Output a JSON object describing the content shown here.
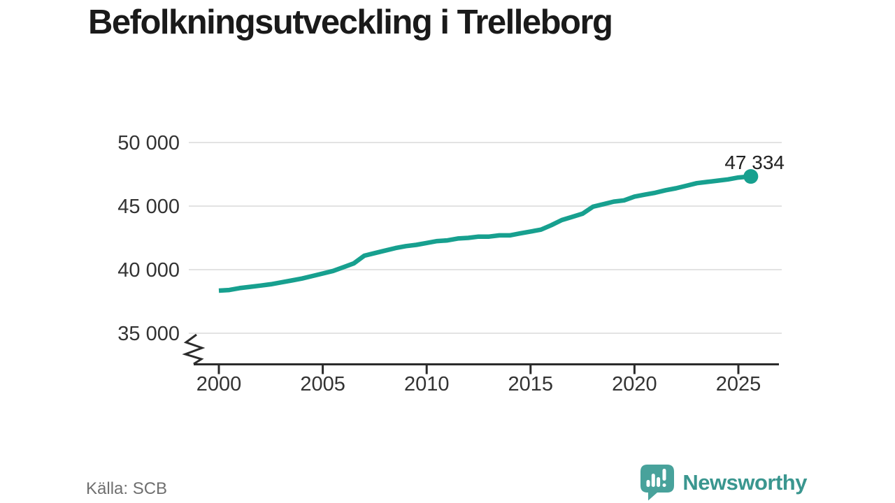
{
  "title": "Befolkningsutveckling i Trelleborg",
  "footer": {
    "source": "Källa: SCB",
    "brand": "Newsworthy"
  },
  "colors": {
    "line": "#17a08f",
    "endpoint_dot": "#17a08f",
    "grid": "#e3e3e3",
    "axis": "#2b2b2b",
    "tick_label": "#333333",
    "title": "#1a1a1a",
    "endpoint_label": "#222222",
    "source_text": "#6f6f6f",
    "brand_text": "#3a968f",
    "brand_bubble": "#48a29b"
  },
  "chart_data": {
    "type": "line",
    "title": "Befolkningsutveckling i Trelleborg",
    "source": "Källa: SCB",
    "xlabel": "",
    "ylabel": "",
    "xlim": [
      1998.6,
      2027
    ],
    "ylim": [
      35000,
      50000
    ],
    "axis_break_at_bottom": true,
    "grid": "horizontal",
    "legend": "none",
    "yticks": [
      {
        "value": 50000,
        "label": "50 000"
      },
      {
        "value": 45000,
        "label": "45 000"
      },
      {
        "value": 40000,
        "label": "40 000"
      },
      {
        "value": 35000,
        "label": "35 000"
      }
    ],
    "xticks": [
      {
        "value": 2000,
        "label": "2000"
      },
      {
        "value": 2005,
        "label": "2005"
      },
      {
        "value": 2010,
        "label": "2010"
      },
      {
        "value": 2015,
        "label": "2015"
      },
      {
        "value": 2020,
        "label": "2020"
      },
      {
        "value": 2025,
        "label": "2025"
      }
    ],
    "endpoint_label": "47 334",
    "endpoint_value": 47334,
    "series": [
      {
        "name": "Befolkning Trelleborg",
        "color": "#17a08f",
        "points": [
          [
            2000.0,
            38350
          ],
          [
            2000.5,
            38400
          ],
          [
            2001.0,
            38550
          ],
          [
            2001.5,
            38650
          ],
          [
            2002.0,
            38750
          ],
          [
            2002.5,
            38850
          ],
          [
            2003.0,
            39000
          ],
          [
            2003.5,
            39150
          ],
          [
            2004.0,
            39300
          ],
          [
            2004.5,
            39500
          ],
          [
            2005.0,
            39700
          ],
          [
            2005.5,
            39900
          ],
          [
            2006.0,
            40200
          ],
          [
            2006.5,
            40500
          ],
          [
            2007.0,
            41100
          ],
          [
            2007.5,
            41300
          ],
          [
            2008.0,
            41500
          ],
          [
            2008.5,
            41700
          ],
          [
            2009.0,
            41850
          ],
          [
            2009.5,
            41950
          ],
          [
            2010.0,
            42100
          ],
          [
            2010.5,
            42250
          ],
          [
            2011.0,
            42300
          ],
          [
            2011.5,
            42450
          ],
          [
            2012.0,
            42500
          ],
          [
            2012.5,
            42600
          ],
          [
            2013.0,
            42600
          ],
          [
            2013.5,
            42700
          ],
          [
            2014.0,
            42700
          ],
          [
            2014.5,
            42850
          ],
          [
            2015.0,
            43000
          ],
          [
            2015.5,
            43150
          ],
          [
            2016.0,
            43500
          ],
          [
            2016.5,
            43900
          ],
          [
            2017.0,
            44150
          ],
          [
            2017.5,
            44400
          ],
          [
            2018.0,
            44950
          ],
          [
            2018.5,
            45150
          ],
          [
            2019.0,
            45350
          ],
          [
            2019.5,
            45450
          ],
          [
            2020.0,
            45750
          ],
          [
            2020.5,
            45900
          ],
          [
            2021.0,
            46050
          ],
          [
            2021.5,
            46250
          ],
          [
            2022.0,
            46400
          ],
          [
            2022.5,
            46600
          ],
          [
            2023.0,
            46800
          ],
          [
            2023.5,
            46900
          ],
          [
            2024.0,
            47000
          ],
          [
            2024.5,
            47100
          ],
          [
            2025.0,
            47250
          ],
          [
            2025.6,
            47334
          ]
        ]
      }
    ]
  }
}
